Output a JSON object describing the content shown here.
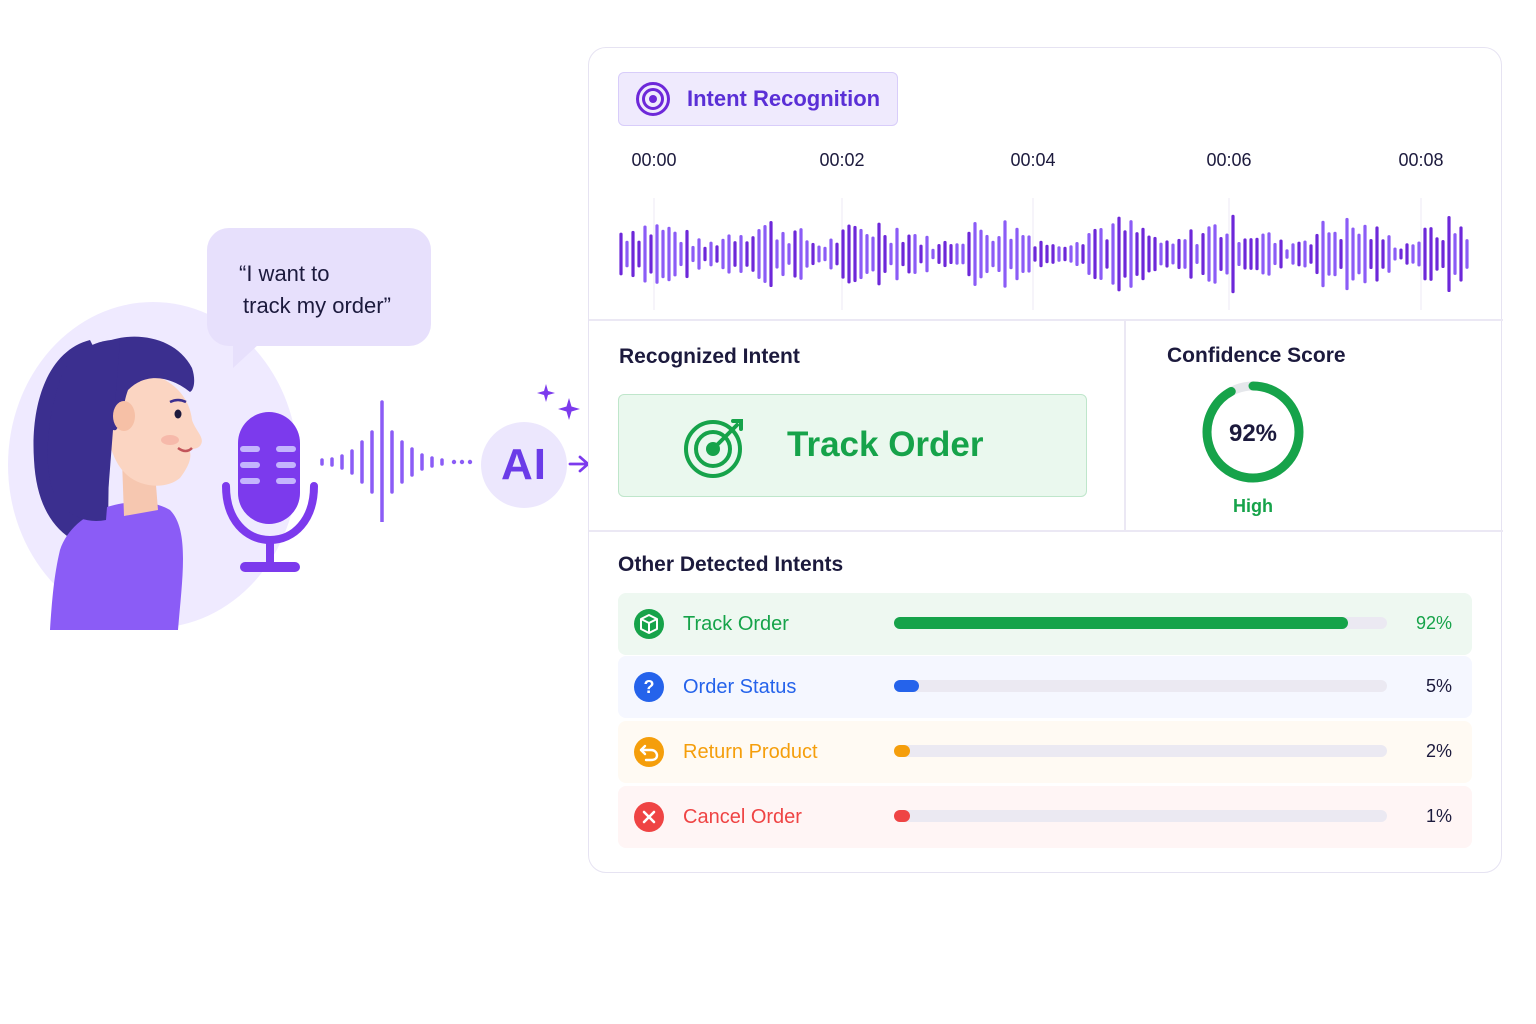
{
  "speech": {
    "line1": "“I want to",
    "line2": "track my order”"
  },
  "ai_badge": "AI",
  "panel": {
    "title": "Intent Recognition",
    "timeline": [
      "00:00",
      "00:02",
      "00:04",
      "00:06",
      "00:08"
    ],
    "recognized": {
      "heading": "Recognized Intent",
      "intent": "Track Order"
    },
    "confidence": {
      "heading": "Confidence Score",
      "value_label": "92%",
      "value": 0.92,
      "level": "High"
    },
    "other": {
      "heading": "Other Detected Intents",
      "items": [
        {
          "label": "Track Order",
          "pct_label": "92%",
          "value": 0.92,
          "color": "#16a34a",
          "icon": "box-icon"
        },
        {
          "label": "Order Status",
          "pct_label": "5%",
          "value": 0.05,
          "color": "#2563eb",
          "icon": "question-icon"
        },
        {
          "label": "Return Product",
          "pct_label": "2%",
          "value": 0.02,
          "color": "#f59e0b",
          "icon": "return-icon"
        },
        {
          "label": "Cancel Order",
          "pct_label": "1%",
          "value": 0.01,
          "color": "#ef4444",
          "icon": "close-icon"
        }
      ]
    }
  },
  "colors": {
    "accent": "#6b3be8",
    "success": "#16a34a",
    "info": "#2563eb",
    "warning": "#f59e0b",
    "danger": "#ef4444"
  }
}
